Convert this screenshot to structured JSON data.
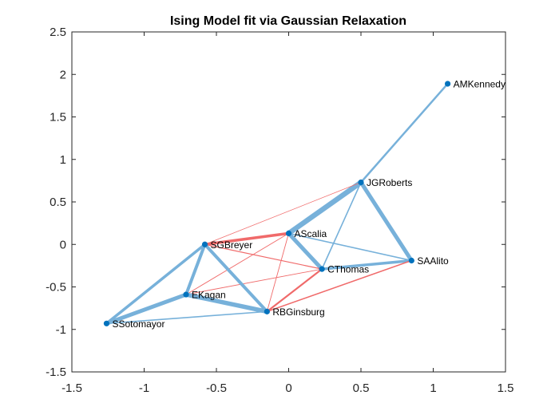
{
  "chart_data": {
    "type": "network",
    "title": "Ising Model fit via Gaussian Relaxation",
    "xlim": [
      -1.5,
      1.5
    ],
    "ylim": [
      -1.5,
      2.5
    ],
    "xticks": [
      -1.5,
      -1,
      -0.5,
      0,
      0.5,
      1,
      1.5
    ],
    "yticks": [
      -1.5,
      -1,
      -0.5,
      0,
      0.5,
      1,
      1.5,
      2,
      2.5
    ],
    "xtick_labels": [
      "-1.5",
      "-1",
      "-0.5",
      "0",
      "0.5",
      "1",
      "1.5"
    ],
    "ytick_labels": [
      "-1.5",
      "-1",
      "-0.5",
      "0",
      "0.5",
      "1",
      "1.5",
      "2",
      "2.5"
    ],
    "grid": false,
    "colors": {
      "positive_edge": "#77b1da",
      "negative_edge": "#f06a6a",
      "node": "#0072bd"
    },
    "nodes": [
      {
        "name": "AMKennedy",
        "x": 1.1,
        "y": 1.89
      },
      {
        "name": "JGRoberts",
        "x": 0.5,
        "y": 0.73
      },
      {
        "name": "AScalia",
        "x": 0.0,
        "y": 0.13
      },
      {
        "name": "SGBreyer",
        "x": -0.58,
        "y": 0.0
      },
      {
        "name": "SAAlito",
        "x": 0.85,
        "y": -0.19
      },
      {
        "name": "CThomas",
        "x": 0.23,
        "y": -0.29
      },
      {
        "name": "EKagan",
        "x": -0.71,
        "y": -0.59
      },
      {
        "name": "RBGinsburg",
        "x": -0.15,
        "y": -0.79
      },
      {
        "name": "SSotomayor",
        "x": -1.26,
        "y": -0.93
      }
    ],
    "edges": [
      {
        "source": "AMKennedy",
        "target": "JGRoberts",
        "sign": "positive",
        "weight": 2.5
      },
      {
        "source": "JGRoberts",
        "target": "AScalia",
        "sign": "positive",
        "weight": 6.5
      },
      {
        "source": "JGRoberts",
        "target": "SAAlito",
        "sign": "positive",
        "weight": 5
      },
      {
        "source": "JGRoberts",
        "target": "CThomas",
        "sign": "positive",
        "weight": 1.6
      },
      {
        "source": "JGRoberts",
        "target": "SGBreyer",
        "sign": "negative",
        "weight": 0.7
      },
      {
        "source": "AScalia",
        "target": "CThomas",
        "sign": "positive",
        "weight": 5
      },
      {
        "source": "AScalia",
        "target": "SAAlito",
        "sign": "positive",
        "weight": 1.6
      },
      {
        "source": "AScalia",
        "target": "SGBreyer",
        "sign": "negative",
        "weight": 3.5
      },
      {
        "source": "AScalia",
        "target": "EKagan",
        "sign": "negative",
        "weight": 0.9
      },
      {
        "source": "AScalia",
        "target": "RBGinsburg",
        "sign": "negative",
        "weight": 0.9
      },
      {
        "source": "CThomas",
        "target": "SAAlito",
        "sign": "positive",
        "weight": 3.5
      },
      {
        "source": "CThomas",
        "target": "SGBreyer",
        "sign": "negative",
        "weight": 1.2
      },
      {
        "source": "CThomas",
        "target": "EKagan",
        "sign": "negative",
        "weight": 0.9
      },
      {
        "source": "CThomas",
        "target": "RBGinsburg",
        "sign": "negative",
        "weight": 2.2
      },
      {
        "source": "SAAlito",
        "target": "RBGinsburg",
        "sign": "negative",
        "weight": 1.5
      },
      {
        "source": "SGBreyer",
        "target": "EKagan",
        "sign": "positive",
        "weight": 4
      },
      {
        "source": "SGBreyer",
        "target": "SSotomayor",
        "sign": "positive",
        "weight": 3.5
      },
      {
        "source": "SGBreyer",
        "target": "RBGinsburg",
        "sign": "positive",
        "weight": 4
      },
      {
        "source": "EKagan",
        "target": "RBGinsburg",
        "sign": "positive",
        "weight": 5.5
      },
      {
        "source": "EKagan",
        "target": "SSotomayor",
        "sign": "positive",
        "weight": 5
      },
      {
        "source": "SSotomayor",
        "target": "RBGinsburg",
        "sign": "positive",
        "weight": 1.6
      }
    ]
  }
}
